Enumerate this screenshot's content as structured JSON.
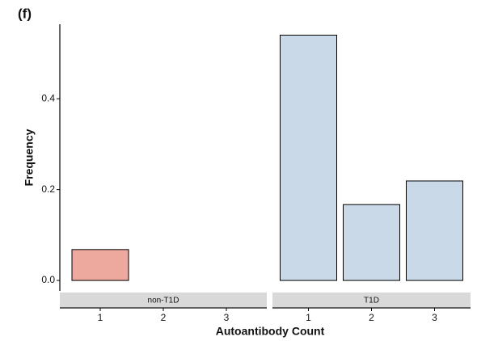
{
  "chart_data": {
    "type": "bar",
    "label": "(f)",
    "ylabel": "Frequency",
    "xlabel": "Autoantibody Count",
    "categories": [
      "1",
      "2",
      "3"
    ],
    "facets": [
      {
        "name": "non-T1D",
        "color": "#eea99f",
        "values": [
          0.068,
          null,
          null
        ]
      },
      {
        "name": "T1D",
        "color": "#c9d9e8",
        "values": [
          0.54,
          0.167,
          0.219
        ]
      }
    ],
    "ylim": [
      -0.023,
      0.564
    ],
    "yticks": [
      {
        "value": 0,
        "label": "0.0"
      },
      0.2,
      0.4
    ]
  }
}
